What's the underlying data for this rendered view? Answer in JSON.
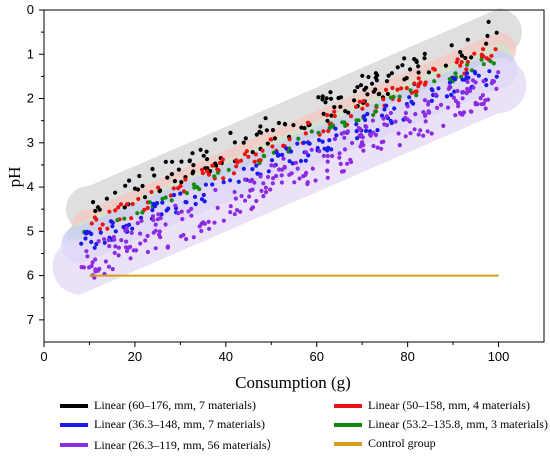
{
  "chart_data": {
    "type": "scatter",
    "xlabel": "Consumption (g)",
    "ylabel": "pH",
    "xlim": [
      0,
      110
    ],
    "ylim": [
      7.5,
      0
    ],
    "y_axis_inverted": true,
    "x_ticks": [
      "0",
      "20",
      "40",
      "60",
      "80",
      "100"
    ],
    "y_ticks": [
      "0",
      "1",
      "2",
      "3",
      "4",
      "5",
      "6",
      "7"
    ],
    "grid": false,
    "legend_position": "bottom",
    "series": [
      {
        "name": "Linear (60–176, mm, 7 materials)",
        "color": "#000000",
        "band": "#d4d4d4",
        "fit": {
          "x": [
            10,
            100
          ],
          "y": [
            4.5,
            0.5
          ]
        },
        "spread": 0.35,
        "count": 140
      },
      {
        "name": "Linear (50–158, mm, 4 materials)",
        "color": "#ee1111",
        "band": "#f6c8c0",
        "fit": {
          "x": [
            10,
            100
          ],
          "y": [
            4.9,
            0.9
          ]
        },
        "spread": 0.22,
        "count": 120
      },
      {
        "name": "Linear (36.3–148, mm, 7 materials)",
        "color": "#1a1aee",
        "band": "#c9cdf4",
        "fit": {
          "x": [
            8,
            100
          ],
          "y": [
            5.3,
            1.35
          ]
        },
        "spread": 0.25,
        "count": 140
      },
      {
        "name": "Linear (53.2–135.8, mm, 3 materials)",
        "color": "#128a12",
        "band": "#cde6cd",
        "fit": {
          "x": [
            8,
            100
          ],
          "y": [
            5.1,
            1.05
          ]
        },
        "spread": 0.12,
        "count": 60
      },
      {
        "name": "Linear (26.3–119, mm, 56 materials）",
        "color": "#8b2be2",
        "band": "#e6d8f6",
        "fit": {
          "x": [
            8,
            100
          ],
          "y": [
            5.8,
            1.7
          ]
        },
        "spread": 0.45,
        "count": 260
      },
      {
        "name": "Control group",
        "color": "#d4a017",
        "type": "line",
        "x": [
          10,
          100
        ],
        "y": [
          6,
          6
        ]
      }
    ]
  }
}
